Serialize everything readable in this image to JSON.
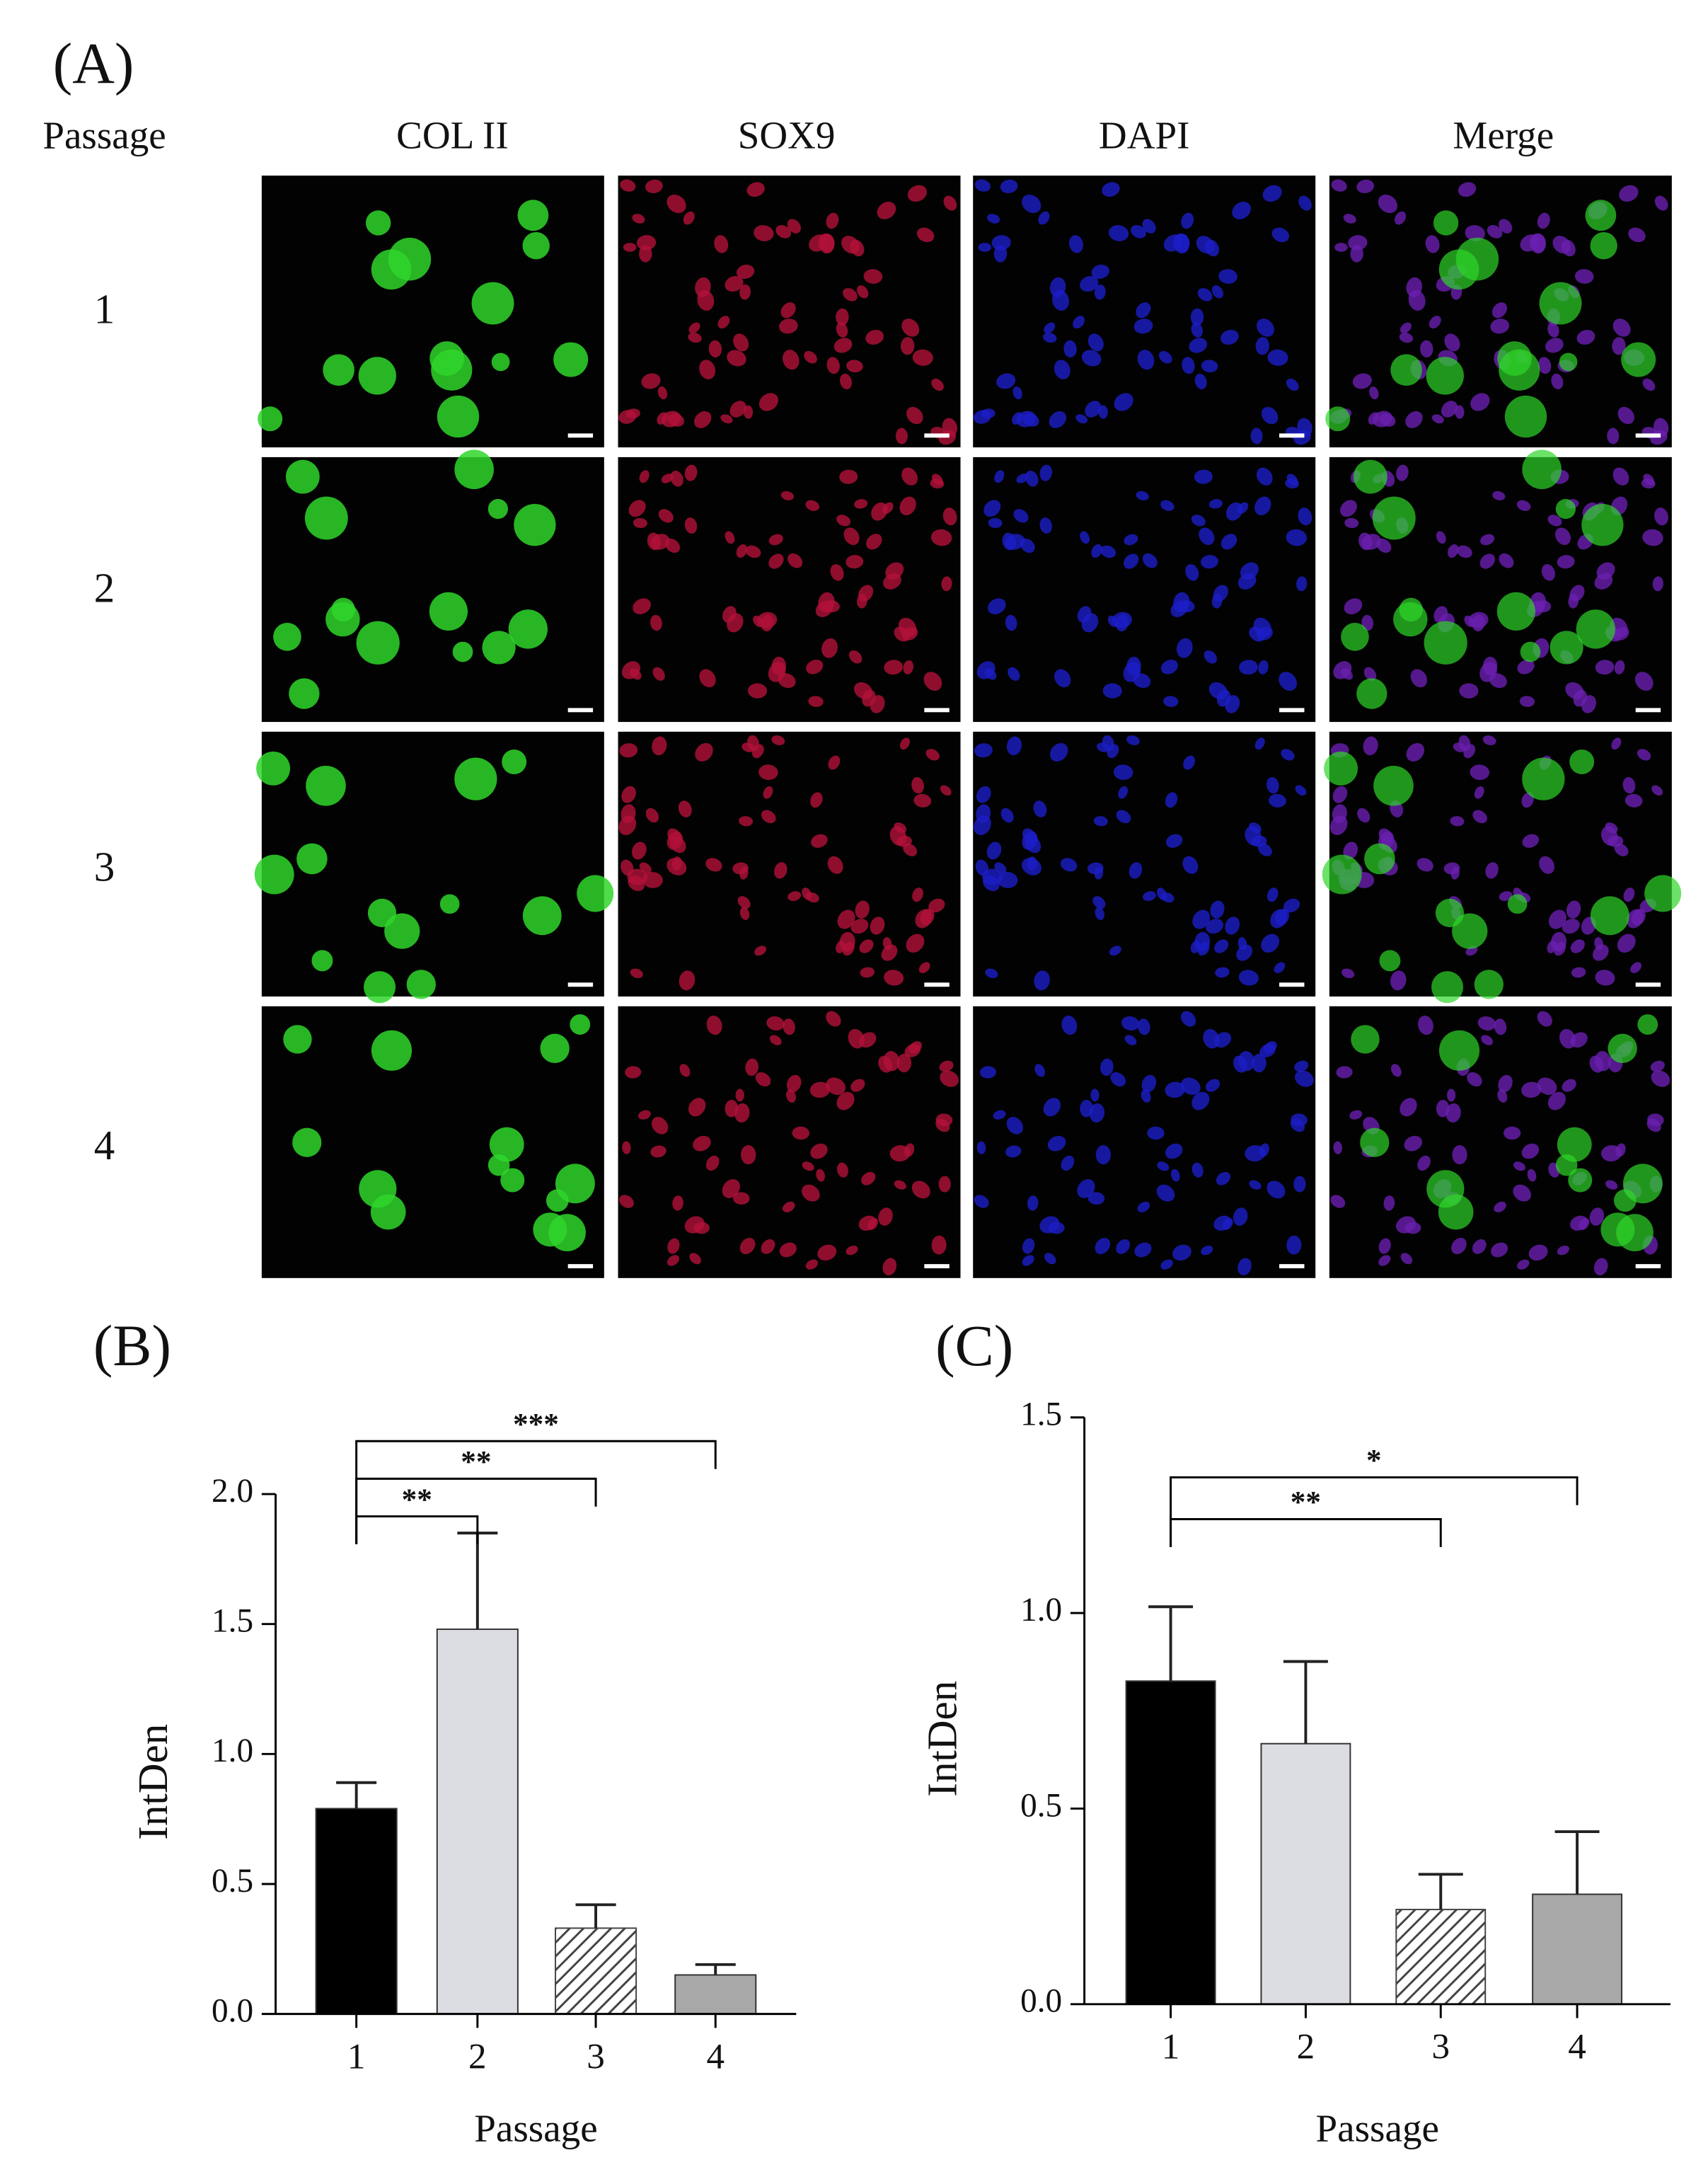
{
  "panel_a": {
    "label": "(A)",
    "row_header": "Passage",
    "columns": [
      "COL II",
      "SOX9",
      "DAPI",
      "Merge"
    ],
    "rows": [
      "1",
      "2",
      "3",
      "4"
    ]
  },
  "chart_data": [
    {
      "type": "bar",
      "panel": "(B)",
      "y_label": "IntDen",
      "x_label": "Passage",
      "categories": [
        "1",
        "2",
        "3",
        "4"
      ],
      "values": [
        0.79,
        1.48,
        0.33,
        0.15
      ],
      "errors": [
        0.1,
        0.37,
        0.09,
        0.04
      ],
      "colors": [
        "#000000",
        "#dcdde2",
        "#444444",
        "#a8a8a8"
      ],
      "hatch": [
        false,
        false,
        true,
        false
      ],
      "ylim": [
        0,
        2.0
      ],
      "yticks": [
        {
          "value": 0,
          "label": "0.0"
        },
        {
          "value": 0.5,
          "label": "0.5"
        },
        {
          "value": 1,
          "label": "1.0"
        },
        {
          "value": 1.5,
          "label": "1.5"
        },
        {
          "value": 2,
          "label": "2.0"
        }
      ],
      "annotations": [
        {
          "text": "**",
          "span": [
            "1",
            "2"
          ]
        },
        {
          "text": "**",
          "span": [
            "1",
            "3"
          ]
        },
        {
          "text": "***",
          "span": [
            "1",
            "4"
          ]
        }
      ]
    },
    {
      "type": "bar",
      "panel": "(C)",
      "y_label": "IntDen",
      "x_label": "Passage",
      "categories": [
        "1",
        "2",
        "3",
        "4"
      ],
      "values": [
        0.826,
        0.666,
        0.242,
        0.281
      ],
      "errors": [
        0.19,
        0.21,
        0.09,
        0.16
      ],
      "colors": [
        "#000000",
        "#dcdde2",
        "#444444",
        "#a8a8a8"
      ],
      "hatch": [
        false,
        false,
        true,
        false
      ],
      "ylim": [
        0,
        1.5
      ],
      "yticks": [
        {
          "value": 0,
          "label": "0.0"
        },
        {
          "value": 0.5,
          "label": "0.5"
        },
        {
          "value": 1,
          "label": "1.0"
        },
        {
          "value": 1.5,
          "label": "1.5"
        }
      ],
      "annotations": [
        {
          "text": "**",
          "span": [
            "1",
            "3"
          ]
        },
        {
          "text": "*",
          "span": [
            "1",
            "4"
          ]
        }
      ]
    }
  ]
}
